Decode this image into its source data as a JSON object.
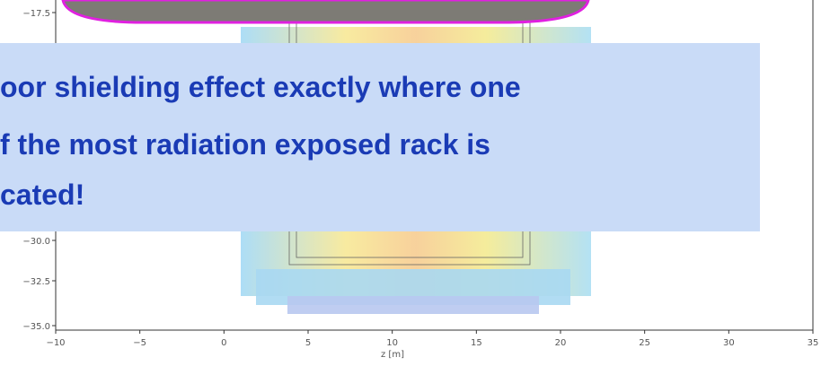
{
  "plot": {
    "x_label": "z [m]",
    "x_tick_labels": [
      "−10",
      "−5",
      "0",
      "5",
      "10",
      "15",
      "20",
      "25",
      "30",
      "35"
    ],
    "y_tick_labels": [
      "−17.5",
      "−30.0",
      "−32.5",
      "−35.0"
    ]
  },
  "callout": {
    "lines": [
      "oor shielding effect exactly where one",
      "f the most radiation exposed rack is",
      "cated!"
    ]
  }
}
